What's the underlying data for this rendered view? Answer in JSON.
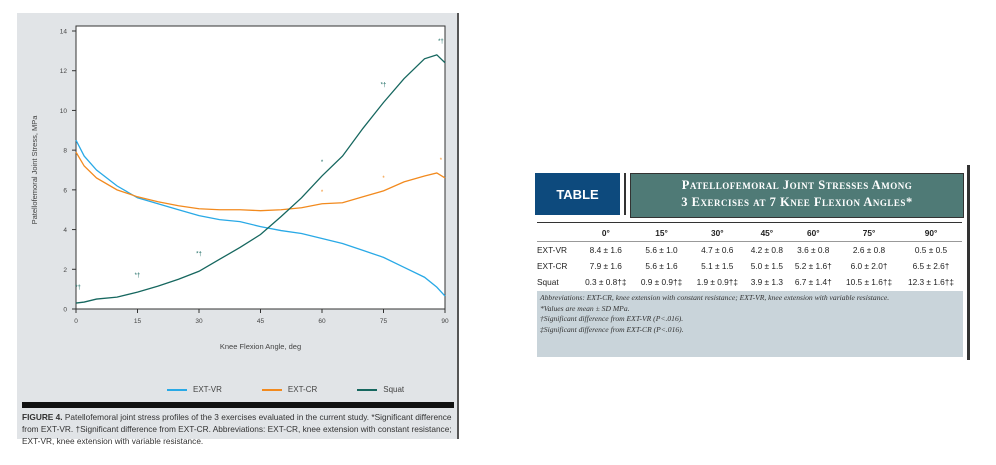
{
  "chart_data": {
    "type": "line",
    "xlabel": "Knee Flexion Angle, deg",
    "ylabel": "Patellofemoral Joint Stress, MPa",
    "xlim": [
      0,
      90
    ],
    "ylim": [
      0,
      14
    ],
    "xticks": [
      "0",
      "15",
      "30",
      "45",
      "60",
      "75",
      "90"
    ],
    "yticks": [
      "0",
      "2",
      "4",
      "6",
      "8",
      "10",
      "12",
      "14"
    ],
    "x": [
      0,
      2,
      5,
      10,
      15,
      20,
      25,
      30,
      35,
      40,
      45,
      50,
      55,
      60,
      65,
      70,
      75,
      80,
      85,
      88,
      90
    ],
    "series": [
      {
        "name": "EXT-VR",
        "color": "#29a9e6",
        "values": [
          8.5,
          7.7,
          7.0,
          6.2,
          5.6,
          5.3,
          5.0,
          4.7,
          4.5,
          4.4,
          4.15,
          3.95,
          3.8,
          3.55,
          3.3,
          2.95,
          2.6,
          2.1,
          1.6,
          1.1,
          0.65
        ]
      },
      {
        "name": "EXT-CR",
        "color": "#f28a1e",
        "values": [
          7.9,
          7.2,
          6.6,
          6.0,
          5.65,
          5.4,
          5.2,
          5.05,
          5.0,
          5.0,
          4.95,
          5.0,
          5.1,
          5.3,
          5.35,
          5.65,
          5.95,
          6.4,
          6.7,
          6.85,
          6.6
        ]
      },
      {
        "name": "Squat",
        "color": "#16675f",
        "values": [
          0.3,
          0.35,
          0.5,
          0.6,
          0.85,
          1.15,
          1.5,
          1.9,
          2.5,
          3.1,
          3.75,
          4.65,
          5.6,
          6.7,
          7.7,
          9.1,
          10.4,
          11.6,
          12.6,
          12.8,
          12.4
        ]
      }
    ],
    "annotations": [
      {
        "x": 0.5,
        "y": 1.0,
        "text": "*†",
        "series": "Squat"
      },
      {
        "x": 15,
        "y": 1.6,
        "text": "*†",
        "series": "Squat"
      },
      {
        "x": 30,
        "y": 2.7,
        "text": "*†",
        "series": "Squat"
      },
      {
        "x": 60,
        "y": 7.3,
        "text": "*",
        "series": "Squat"
      },
      {
        "x": 75,
        "y": 11.2,
        "text": "*†",
        "series": "Squat"
      },
      {
        "x": 89,
        "y": 13.4,
        "text": "*†",
        "series": "Squat"
      },
      {
        "x": 60,
        "y": 5.8,
        "text": "*",
        "series": "EXT-CR"
      },
      {
        "x": 75,
        "y": 6.5,
        "text": "*",
        "series": "EXT-CR"
      },
      {
        "x": 89,
        "y": 7.4,
        "text": "*",
        "series": "EXT-CR"
      }
    ],
    "legend": "bottom"
  },
  "figure": {
    "caption_label": "FIGURE 4.",
    "caption": " Patellofemoral joint stress profiles of the 3 exercises evaluated in the current study. *Significant difference from EXT-VR. †Significant difference from EXT-CR. Abbreviations: EXT-CR, knee extension with constant resistance; EXT-VR, knee extension with variable resistance."
  },
  "table": {
    "badge": "TABLE",
    "title_line1": "Patellofemoral Joint Stresses Among",
    "title_line2": "3 Exercises at 7 Knee Flexion Angles*",
    "headers": [
      "",
      "0°",
      "15°",
      "30°",
      "45°",
      "60°",
      "75°",
      "90°"
    ],
    "rows": [
      [
        "EXT-VR",
        "8.4 ± 1.6",
        "5.6 ± 1.0",
        "4.7 ± 0.6",
        "4.2 ± 0.8",
        "3.6 ± 0.8",
        "2.6 ± 0.8",
        "0.5 ± 0.5"
      ],
      [
        "EXT-CR",
        "7.9 ± 1.6",
        "5.6 ± 1.6",
        "5.1 ± 1.5",
        "5.0 ± 1.5",
        "5.2 ± 1.6†",
        "6.0 ± 2.0†",
        "6.5 ± 2.6†"
      ],
      [
        "Squat",
        "0.3 ± 0.8†‡",
        "0.9 ± 0.9†‡",
        "1.9 ± 0.9†‡",
        "3.9 ± 1.3",
        "6.7 ± 1.4†",
        "10.5 ± 1.6†‡",
        "12.3 ± 1.6†‡"
      ]
    ],
    "notes": [
      "Abbreviations: EXT-CR, knee extension with constant resistance; EXT-VR, knee extension with variable resistance.",
      "*Values are mean ± SD MPa.",
      "†Significant difference from EXT-VR (P<.016).",
      "‡Significant difference from EXT-CR (P<.016)."
    ]
  }
}
